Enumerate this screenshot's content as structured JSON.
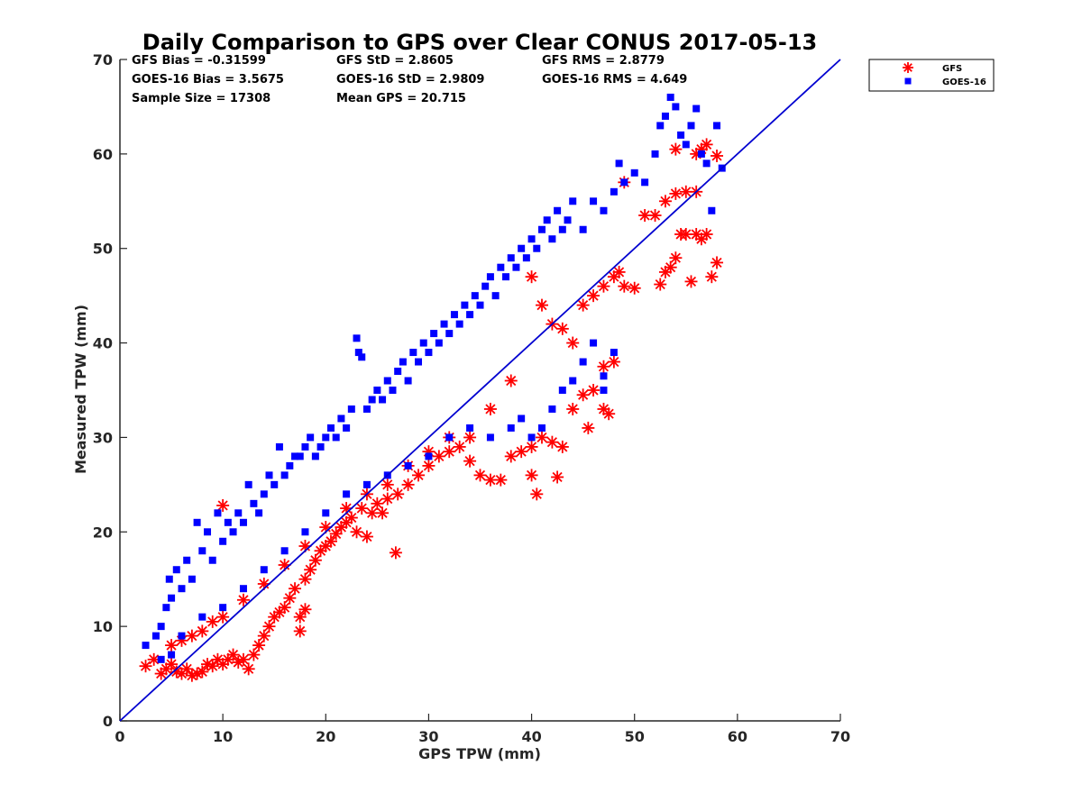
{
  "chart_data": {
    "type": "scatter",
    "title": "Daily Comparison to GPS over Clear CONUS 2017-05-13",
    "xlabel": "GPS TPW (mm)",
    "ylabel": "Measured TPW (mm)",
    "xlim": [
      0,
      70
    ],
    "ylim": [
      0,
      70
    ],
    "xticks": [
      "0",
      "10",
      "20",
      "30",
      "40",
      "50",
      "60",
      "70"
    ],
    "yticks": [
      "0",
      "10",
      "20",
      "30",
      "40",
      "50",
      "60",
      "70"
    ],
    "grid": false,
    "legend_position": "outside-top-right",
    "stats": [
      "GFS Bias = -0.31599",
      "GFS StD = 2.8605",
      "GFS RMS = 2.8779",
      "GOES-16 Bias = 3.5675",
      "GOES-16 StD = 2.9809",
      "GOES-16 RMS = 4.649",
      "Sample Size = 17308",
      "Mean GPS = 20.715"
    ],
    "reference_line": {
      "name": "1:1 line",
      "x": [
        0,
        70
      ],
      "y": [
        0,
        70
      ],
      "color": "#0000d0"
    },
    "series": [
      {
        "name": "GFS",
        "marker": "asterisk",
        "color": "#ff0000",
        "points": [
          [
            2.5,
            5.8
          ],
          [
            3.3,
            6.5
          ],
          [
            4,
            5
          ],
          [
            4.5,
            5.5
          ],
          [
            5,
            6
          ],
          [
            5.5,
            5.2
          ],
          [
            6,
            5
          ],
          [
            6.5,
            5.5
          ],
          [
            7,
            4.8
          ],
          [
            7.5,
            5
          ],
          [
            8,
            5.2
          ],
          [
            8.5,
            6
          ],
          [
            9,
            5.8
          ],
          [
            9.5,
            6.5
          ],
          [
            10,
            6
          ],
          [
            10.5,
            6.5
          ],
          [
            11,
            7
          ],
          [
            11.5,
            6.2
          ],
          [
            12,
            6.5
          ],
          [
            12.5,
            5.5
          ],
          [
            13,
            7
          ],
          [
            13.5,
            8
          ],
          [
            14,
            9
          ],
          [
            14.5,
            10
          ],
          [
            15,
            11
          ],
          [
            15.5,
            11.5
          ],
          [
            16,
            12
          ],
          [
            16.5,
            13
          ],
          [
            17,
            14
          ],
          [
            17.5,
            11
          ],
          [
            17.5,
            9.5
          ],
          [
            18,
            15
          ],
          [
            18,
            11.8
          ],
          [
            18.5,
            16
          ],
          [
            19,
            17
          ],
          [
            19.5,
            18
          ],
          [
            20,
            18.5
          ],
          [
            20.5,
            19
          ],
          [
            21,
            19.8
          ],
          [
            21.5,
            20.5
          ],
          [
            22,
            21
          ],
          [
            22.5,
            21.5
          ],
          [
            23,
            20
          ],
          [
            23.5,
            22.5
          ],
          [
            24,
            19.5
          ],
          [
            24.5,
            22
          ],
          [
            25,
            23
          ],
          [
            25.5,
            22
          ],
          [
            26,
            23.5
          ],
          [
            26.8,
            17.8
          ],
          [
            27,
            24
          ],
          [
            28,
            25
          ],
          [
            29,
            26
          ],
          [
            30,
            27
          ],
          [
            31,
            28
          ],
          [
            32,
            28.5
          ],
          [
            33,
            29
          ],
          [
            34,
            27.5
          ],
          [
            35,
            26
          ],
          [
            36,
            25.5
          ],
          [
            37,
            25.5
          ],
          [
            38,
            28
          ],
          [
            39,
            28.5
          ],
          [
            40,
            29
          ],
          [
            40.5,
            24
          ],
          [
            40,
            26
          ],
          [
            41,
            30
          ],
          [
            42,
            29.5
          ],
          [
            42.5,
            25.8
          ],
          [
            43,
            29
          ],
          [
            44,
            33
          ],
          [
            45,
            34.5
          ],
          [
            45.5,
            31
          ],
          [
            46,
            35
          ],
          [
            47,
            33
          ],
          [
            47.5,
            32.5
          ],
          [
            45,
            44
          ],
          [
            46,
            45
          ],
          [
            47,
            46
          ],
          [
            48,
            47
          ],
          [
            48.5,
            47.5
          ],
          [
            49,
            46
          ],
          [
            50,
            45.8
          ],
          [
            51,
            53.5
          ],
          [
            52,
            53.5
          ],
          [
            52.5,
            46.2
          ],
          [
            53,
            47.5
          ],
          [
            53.5,
            48
          ],
          [
            54,
            49
          ],
          [
            54.5,
            51.5
          ],
          [
            55,
            51.5
          ],
          [
            56,
            51.5
          ],
          [
            56.5,
            51
          ],
          [
            57,
            51.5
          ],
          [
            57.5,
            47
          ],
          [
            58,
            48.5
          ],
          [
            55.5,
            46.5
          ],
          [
            53,
            55
          ],
          [
            54,
            55.8
          ],
          [
            55,
            56
          ],
          [
            56,
            56
          ],
          [
            56,
            60
          ],
          [
            56.5,
            60.5
          ],
          [
            57,
            61
          ],
          [
            58,
            59.8
          ],
          [
            54,
            60.5
          ],
          [
            49,
            57
          ],
          [
            48,
            38
          ],
          [
            47,
            37.5
          ],
          [
            44,
            40
          ],
          [
            43,
            41.5
          ],
          [
            42,
            42
          ],
          [
            41,
            44
          ],
          [
            40,
            47
          ],
          [
            38,
            36
          ],
          [
            36,
            33
          ],
          [
            34,
            30
          ],
          [
            32,
            30
          ],
          [
            30,
            28.5
          ],
          [
            28,
            27
          ],
          [
            26,
            25
          ],
          [
            24,
            24
          ],
          [
            22,
            22.5
          ],
          [
            20,
            20.5
          ],
          [
            18,
            18.5
          ],
          [
            16,
            16.5
          ],
          [
            14,
            14.5
          ],
          [
            12,
            12.8
          ],
          [
            10,
            11
          ],
          [
            9,
            10.5
          ],
          [
            8,
            9.5
          ],
          [
            7,
            9
          ],
          [
            6,
            8.5
          ],
          [
            5,
            8
          ],
          [
            10,
            22.8
          ]
        ]
      },
      {
        "name": "GOES-16",
        "marker": "square",
        "color": "#0000ff",
        "points": [
          [
            2.5,
            8
          ],
          [
            3.5,
            9
          ],
          [
            4,
            10
          ],
          [
            4.5,
            12
          ],
          [
            4.8,
            15
          ],
          [
            5,
            13
          ],
          [
            5.5,
            16
          ],
          [
            6,
            14
          ],
          [
            6.5,
            17
          ],
          [
            7,
            15
          ],
          [
            7.5,
            21
          ],
          [
            8,
            18
          ],
          [
            8.5,
            20
          ],
          [
            9,
            17
          ],
          [
            9.5,
            22
          ],
          [
            10,
            19
          ],
          [
            10.5,
            21
          ],
          [
            11,
            20
          ],
          [
            11.5,
            22
          ],
          [
            12,
            21
          ],
          [
            12.5,
            25
          ],
          [
            13,
            23
          ],
          [
            13.5,
            22
          ],
          [
            14,
            24
          ],
          [
            14.5,
            26
          ],
          [
            15,
            25
          ],
          [
            15.5,
            29
          ],
          [
            16,
            26
          ],
          [
            16.5,
            27
          ],
          [
            17,
            28
          ],
          [
            17.5,
            28
          ],
          [
            18,
            29
          ],
          [
            18.5,
            30
          ],
          [
            19,
            28
          ],
          [
            19.5,
            29
          ],
          [
            20,
            30
          ],
          [
            20.5,
            31
          ],
          [
            21,
            30
          ],
          [
            21.5,
            32
          ],
          [
            22,
            31
          ],
          [
            22.5,
            33
          ],
          [
            23,
            40.5
          ],
          [
            23.2,
            39
          ],
          [
            23.5,
            38.5
          ],
          [
            24,
            33
          ],
          [
            24.5,
            34
          ],
          [
            25,
            35
          ],
          [
            25.5,
            34
          ],
          [
            26,
            36
          ],
          [
            26.5,
            35
          ],
          [
            27,
            37
          ],
          [
            27.5,
            38
          ],
          [
            28,
            36
          ],
          [
            28.5,
            39
          ],
          [
            29,
            38
          ],
          [
            29.5,
            40
          ],
          [
            30,
            39
          ],
          [
            30.5,
            41
          ],
          [
            31,
            40
          ],
          [
            31.5,
            42
          ],
          [
            32,
            41
          ],
          [
            32.5,
            43
          ],
          [
            33,
            42
          ],
          [
            33.5,
            44
          ],
          [
            34,
            43
          ],
          [
            34.5,
            45
          ],
          [
            35,
            44
          ],
          [
            35.5,
            46
          ],
          [
            36,
            47
          ],
          [
            36.5,
            45
          ],
          [
            37,
            48
          ],
          [
            37.5,
            47
          ],
          [
            38,
            49
          ],
          [
            38.5,
            48
          ],
          [
            39,
            50
          ],
          [
            39.5,
            49
          ],
          [
            40,
            51
          ],
          [
            40.5,
            50
          ],
          [
            41,
            52
          ],
          [
            41.5,
            53
          ],
          [
            42,
            51
          ],
          [
            42.5,
            54
          ],
          [
            43,
            52
          ],
          [
            43.5,
            53
          ],
          [
            44,
            55
          ],
          [
            45,
            52
          ],
          [
            46,
            55
          ],
          [
            47,
            54
          ],
          [
            48,
            56
          ],
          [
            48.5,
            59
          ],
          [
            49,
            57
          ],
          [
            50,
            58
          ],
          [
            51,
            57
          ],
          [
            52,
            60
          ],
          [
            52.5,
            63
          ],
          [
            53,
            64
          ],
          [
            53.5,
            66
          ],
          [
            54,
            65
          ],
          [
            54.5,
            62
          ],
          [
            55,
            61
          ],
          [
            55.5,
            63
          ],
          [
            56,
            64.8
          ],
          [
            56.5,
            60
          ],
          [
            57,
            59
          ],
          [
            57.5,
            54
          ],
          [
            58,
            63
          ],
          [
            58.5,
            58.5
          ],
          [
            47,
            35
          ],
          [
            47,
            36.5
          ],
          [
            48,
            39
          ],
          [
            44,
            36
          ],
          [
            45,
            38
          ],
          [
            46,
            40
          ],
          [
            43,
            35
          ],
          [
            42,
            33
          ],
          [
            41,
            31
          ],
          [
            40,
            30
          ],
          [
            39,
            32
          ],
          [
            38,
            31
          ],
          [
            36,
            30
          ],
          [
            34,
            31
          ],
          [
            32,
            30
          ],
          [
            30,
            28
          ],
          [
            28,
            27
          ],
          [
            26,
            26
          ],
          [
            24,
            25
          ],
          [
            22,
            24
          ],
          [
            20,
            22
          ],
          [
            18,
            20
          ],
          [
            16,
            18
          ],
          [
            14,
            16
          ],
          [
            12,
            14
          ],
          [
            10,
            12
          ],
          [
            8,
            11
          ],
          [
            6,
            9
          ],
          [
            5,
            7
          ],
          [
            4,
            6.5
          ]
        ]
      }
    ]
  }
}
